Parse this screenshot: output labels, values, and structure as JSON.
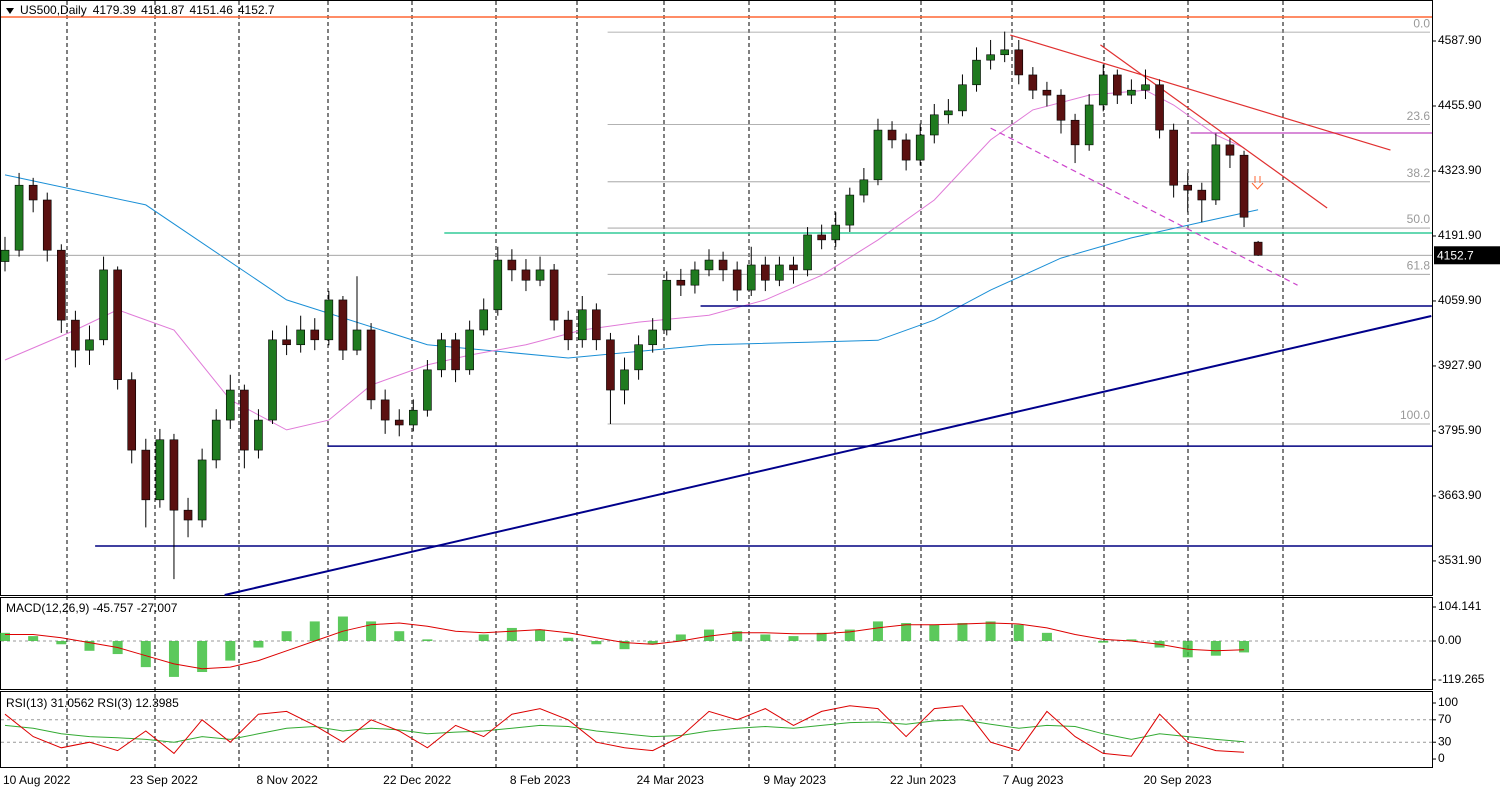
{
  "chart_data": [
    {
      "type": "candlestick",
      "symbol": "US500,Daily",
      "categories": [
        "10 Aug 2022",
        null,
        null,
        null,
        null,
        null,
        null,
        null,
        null,
        "23 Sep 2022",
        null,
        null,
        null,
        null,
        null,
        null,
        null,
        null,
        "8 Nov 2022",
        null,
        null,
        null,
        null,
        null,
        null,
        null,
        null,
        "22 Dec 2022",
        null,
        null,
        null,
        null,
        null,
        null,
        null,
        null,
        "8 Feb 2023",
        null,
        null,
        null,
        null,
        null,
        null,
        null,
        null,
        "24 Mar 2023",
        null,
        null,
        null,
        null,
        null,
        null,
        null,
        null,
        "9 May 2023",
        null,
        null,
        null,
        null,
        null,
        null,
        null,
        null,
        "22 Jun 2023",
        null,
        null,
        null,
        null,
        null,
        null,
        null,
        "7 Aug 2023",
        null,
        null,
        null,
        null,
        null,
        null,
        null,
        null,
        null,
        "20 Sep 2023",
        null,
        null,
        null,
        null,
        null,
        null,
        null,
        null
      ],
      "open": [
        4140,
        4163,
        4295,
        4265,
        4163,
        4021,
        3960,
        3981,
        4123,
        3900,
        3757,
        3656,
        3778,
        3635,
        3615,
        3737,
        3818,
        3879,
        3757,
        3818,
        3981,
        3971,
        4001,
        3981,
        4062,
        3960,
        4001,
        3859,
        3818,
        3808,
        3838,
        3920,
        3981,
        3920,
        4001,
        4042,
        4143,
        4123,
        4102,
        4123,
        4021,
        3981,
        4042,
        3981,
        3879,
        3920,
        3971,
        4001,
        4102,
        4092,
        4123,
        4143,
        4123,
        4082,
        4133,
        4102,
        4133,
        4123,
        4194,
        4184,
        4214,
        4275,
        4306,
        4407,
        4387,
        4346,
        4397,
        4438,
        4446,
        4499,
        4549,
        4560,
        4570,
        4519,
        4488,
        4478,
        4427,
        4377,
        4458,
        4519,
        4478,
        4488,
        4499,
        4407,
        4295,
        4285,
        4265,
        4377,
        4356,
        4179.39
      ],
      "high": [
        4190,
        4320,
        4310,
        4280,
        4175,
        4040,
        4010,
        4150,
        4130,
        3915,
        3780,
        3800,
        3790,
        3660,
        3760,
        3840,
        3910,
        3890,
        3840,
        4000,
        4010,
        4030,
        4025,
        4080,
        4070,
        4110,
        4015,
        3880,
        3840,
        3860,
        3940,
        3995,
        3995,
        4020,
        4065,
        4170,
        4165,
        4145,
        4150,
        4135,
        4040,
        4070,
        4055,
        3995,
        3945,
        3990,
        4025,
        4120,
        4125,
        4140,
        4165,
        4160,
        4140,
        4170,
        4150,
        4150,
        4150,
        4210,
        4215,
        4240,
        4290,
        4330,
        4430,
        4425,
        4400,
        4420,
        4460,
        4470,
        4520,
        4575,
        4590,
        4607,
        4590,
        4535,
        4505,
        4490,
        4440,
        4480,
        4540,
        4530,
        4510,
        4530,
        4510,
        4420,
        4320,
        4300,
        4400,
        4390,
        4365,
        4181.87
      ],
      "low": [
        4120,
        4150,
        4240,
        4140,
        3995,
        3925,
        3930,
        3970,
        3880,
        3730,
        3600,
        3640,
        3495,
        3580,
        3600,
        3720,
        3800,
        3720,
        3740,
        3810,
        3950,
        3955,
        3960,
        3970,
        3940,
        3950,
        3840,
        3790,
        3785,
        3795,
        3825,
        3905,
        3895,
        3910,
        3990,
        4030,
        4100,
        4080,
        4090,
        4000,
        3960,
        3965,
        3960,
        3810,
        3850,
        3900,
        3955,
        3990,
        4070,
        4075,
        4110,
        4100,
        4060,
        4070,
        4080,
        4090,
        4095,
        4110,
        4165,
        4170,
        4200,
        4260,
        4295,
        4370,
        4325,
        4335,
        4380,
        4420,
        4435,
        4485,
        4530,
        4545,
        4500,
        4470,
        4455,
        4400,
        4340,
        4365,
        4445,
        4460,
        4460,
        4470,
        4390,
        4270,
        4240,
        4220,
        4255,
        4330,
        4210,
        4151.46
      ],
      "close": [
        4163,
        4295,
        4265,
        4163,
        4021,
        3960,
        3981,
        4123,
        3900,
        3757,
        3656,
        3778,
        3635,
        3615,
        3737,
        3818,
        3879,
        3757,
        3818,
        3981,
        3971,
        4001,
        3981,
        4062,
        3960,
        4001,
        3859,
        3818,
        3808,
        3838,
        3920,
        3981,
        3920,
        4001,
        4042,
        4143,
        4123,
        4102,
        4123,
        4021,
        3981,
        4042,
        3981,
        3879,
        3920,
        3971,
        4001,
        4102,
        4092,
        4123,
        4143,
        4123,
        4082,
        4133,
        4102,
        4133,
        4123,
        4194,
        4184,
        4214,
        4275,
        4306,
        4407,
        4387,
        4346,
        4397,
        4438,
        4446,
        4499,
        4549,
        4560,
        4570,
        4519,
        4488,
        4478,
        4427,
        4377,
        4458,
        4519,
        4478,
        4488,
        4499,
        4407,
        4295,
        4285,
        4265,
        4377,
        4356,
        4230,
        4152.7
      ],
      "up_color": "#1f7a1f",
      "down_color": "#5a1010",
      "wick_color": "#000000",
      "ylim": [
        3462.7,
        4671.2
      ],
      "yticks": [
        {
          "value": 4587.9,
          "label": "4587.90"
        },
        {
          "value": 4455.9,
          "label": "4455.90"
        },
        {
          "value": 4323.9,
          "label": "4323.90"
        },
        {
          "value": 4191.9,
          "label": "4191.90"
        },
        {
          "value": 4059.9,
          "label": "4059.90"
        },
        {
          "value": 3927.9,
          "label": "3927.90"
        },
        {
          "value": 3795.9,
          "label": "3795.90"
        },
        {
          "value": 3663.9,
          "label": "3663.90"
        },
        {
          "value": 3531.9,
          "label": "3531.90"
        }
      ],
      "moving_averages": [
        {
          "color": "#1a8fd6",
          "x": [
            0,
            10,
            20,
            30,
            40,
            50,
            57,
            62,
            66,
            70,
            75,
            80,
            85,
            89
          ],
          "values": [
            4316,
            4255,
            4062,
            3971,
            3944,
            3971,
            3976,
            3980,
            4021,
            4082,
            4147,
            4188,
            4220,
            4245
          ]
        },
        {
          "color": "#e07ad8",
          "x": [
            0,
            5,
            8,
            12,
            16,
            20,
            23,
            26,
            30,
            33,
            37,
            41,
            45,
            50,
            54,
            58,
            62,
            66,
            70,
            73,
            77,
            81,
            83,
            86,
            88
          ],
          "values": [
            3940,
            4001,
            4042,
            4001,
            3859,
            3798,
            3818,
            3889,
            3930,
            3950,
            3971,
            4001,
            4017,
            4031,
            4062,
            4112,
            4184,
            4265,
            4387,
            4448,
            4478,
            4488,
            4458,
            4397,
            4371
          ]
        }
      ],
      "levels": [
        {
          "value": 4636.6,
          "start": -0.4,
          "color": "#ff6633"
        },
        {
          "value": 4197.9,
          "start": 31.2,
          "color": "#33cc99"
        },
        {
          "value": 4049.7,
          "start": 49.4,
          "color": "#000080"
        },
        {
          "value": 3765.2,
          "start": 22.9,
          "color": "#000080"
        },
        {
          "value": 3562.1,
          "start": 6.4,
          "color": "#000080"
        },
        {
          "value": 4401,
          "start": 84.2,
          "color": "#cc66cc"
        }
      ],
      "trendlines": [
        {
          "x": [
            15.6,
            101.3
          ],
          "y": [
            3462.7,
            4029.4
          ],
          "color": "#00008b",
          "dashed": false
        },
        {
          "x": [
            71.4,
            98.4
          ],
          "y": [
            4600,
            4366.5
          ],
          "color": "#e03030",
          "dashed": false
        },
        {
          "x": [
            77.8,
            93.9
          ],
          "y": [
            4580,
            4248.7
          ],
          "color": "#e03030",
          "dashed": false
        },
        {
          "x": [
            70,
            91.8
          ],
          "y": [
            4411,
            4092
          ],
          "color": "#cc44cc",
          "dashed": true
        }
      ],
      "fib": {
        "high": 4606,
        "low": 3810,
        "start": 42.8,
        "color": "#999999",
        "levels": [
          {
            "value": 0,
            "label": "0.0"
          },
          {
            "value": 23.6,
            "label": "23.6"
          },
          {
            "value": 38.2,
            "label": "38.2"
          },
          {
            "value": 50,
            "label": "50.0"
          },
          {
            "value": 61.8,
            "label": "61.8"
          },
          {
            "value": 100,
            "label": "100.0"
          }
        ]
      }
    },
    {
      "type": "macd",
      "title": "MACD(12,26,9) -45.757 -27.007",
      "x": [
        0,
        2,
        4,
        6,
        8,
        10,
        12,
        14,
        16,
        18,
        20,
        22,
        24,
        26,
        28,
        30,
        32,
        34,
        36,
        38,
        40,
        42,
        44,
        46,
        48,
        50,
        52,
        54,
        56,
        58,
        60,
        62,
        64,
        66,
        68,
        70,
        72,
        74,
        76,
        78,
        80,
        82,
        84,
        86,
        88
      ],
      "histogram": [
        25,
        15,
        -10,
        -30,
        -40,
        -80,
        -110,
        -95,
        -60,
        -20,
        30,
        60,
        75,
        60,
        30,
        5,
        0,
        20,
        40,
        35,
        10,
        -10,
        -25,
        -10,
        20,
        35,
        30,
        20,
        15,
        25,
        35,
        60,
        55,
        50,
        55,
        60,
        50,
        25,
        0,
        -5,
        5,
        -20,
        -50,
        -45,
        -35
      ],
      "signal": [
        20,
        20,
        10,
        -5,
        -20,
        -45,
        -70,
        -85,
        -80,
        -60,
        -30,
        0,
        30,
        50,
        55,
        45,
        30,
        25,
        30,
        35,
        25,
        10,
        -5,
        -10,
        0,
        15,
        25,
        25,
        22,
        22,
        28,
        40,
        50,
        50,
        52,
        55,
        52,
        40,
        20,
        5,
        0,
        -10,
        -25,
        -30,
        -27
      ],
      "histogram_color": "#33bb33",
      "signal_color": "#dd0000",
      "ylim": [
        -150.1,
        134.8
      ],
      "yticks": [
        104.141,
        {
          "value": 0,
          "label": "0.00"
        },
        -119.265
      ],
      "levels": [
        0
      ]
    },
    {
      "type": "rsi",
      "title": "RSI(13) 31.0562  RSI(3) 12.3985",
      "x": [
        0,
        2,
        4,
        6,
        8,
        10,
        12,
        14,
        16,
        18,
        20,
        22,
        24,
        26,
        28,
        30,
        32,
        34,
        36,
        38,
        40,
        42,
        44,
        46,
        48,
        50,
        52,
        54,
        56,
        58,
        60,
        62,
        64,
        66,
        68,
        70,
        72,
        74,
        76,
        78,
        80,
        82,
        84,
        86,
        88
      ],
      "series": [
        {
          "color": "#33aa33",
          "values": [
            60,
            55,
            45,
            40,
            38,
            35,
            30,
            40,
            35,
            45,
            55,
            58,
            50,
            55,
            52,
            45,
            48,
            50,
            55,
            60,
            58,
            50,
            45,
            40,
            42,
            50,
            55,
            58,
            55,
            60,
            65,
            66,
            62,
            68,
            70,
            62,
            55,
            60,
            58,
            45,
            35,
            45,
            40,
            35,
            31
          ]
        },
        {
          "color": "#dd0000",
          "values": [
            80,
            40,
            20,
            30,
            15,
            50,
            10,
            70,
            30,
            80,
            85,
            60,
            30,
            70,
            50,
            20,
            60,
            40,
            80,
            90,
            70,
            30,
            20,
            15,
            40,
            85,
            70,
            90,
            60,
            85,
            95,
            90,
            40,
            90,
            95,
            30,
            15,
            85,
            40,
            10,
            5,
            80,
            30,
            15,
            12
          ]
        }
      ],
      "ylim": [
        -16,
        119.6
      ],
      "yticks": [
        100,
        70,
        30,
        0
      ],
      "levels": [
        70,
        30
      ]
    }
  ]
}
